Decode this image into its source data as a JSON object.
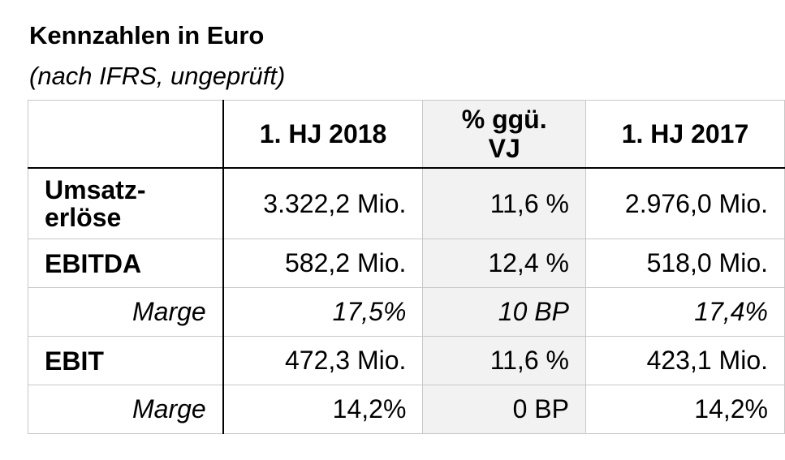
{
  "title": "Kennzahlen in Euro",
  "subtitle": "(nach IFRS, ungeprüft)",
  "table": {
    "headers": [
      "",
      "1. HJ 2018",
      "% ggü. VJ",
      "1. HJ 2017"
    ],
    "rows": [
      {
        "label": "Umsatz-erlöse",
        "h1_2018": "3.322,2 Mio.",
        "change": "11,6 %",
        "h1_2017": "2.976,0 Mio."
      },
      {
        "label": "EBITDA",
        "h1_2018": "582,2 Mio.",
        "change": "12,4 %",
        "h1_2017": "518,0 Mio."
      },
      {
        "label": "Marge",
        "h1_2018": "17,5%",
        "change": "10 BP",
        "h1_2017": "17,4%"
      },
      {
        "label": "EBIT",
        "h1_2018": "472,3 Mio.",
        "change": "11,6 %",
        "h1_2017": "423,1 Mio."
      },
      {
        "label": "Marge",
        "h1_2018": "14,2%",
        "change": "0 BP",
        "h1_2017": "14,2%"
      }
    ]
  },
  "colors": {
    "grid": "#c8c8c8",
    "highlight_column": "#f2f2f2",
    "strong_rule": "#000000"
  }
}
